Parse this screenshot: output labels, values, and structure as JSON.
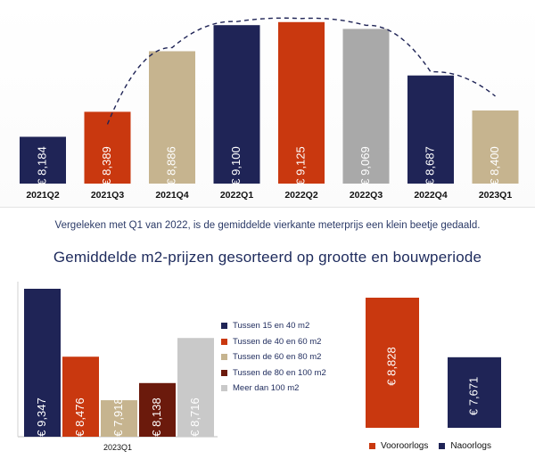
{
  "summary_text": "Vergeleken met Q1 van 2022, is de gemiddelde vierkante meterprijs een klein beetje gedaald.",
  "section_title": "Gemiddelde m2-prijzen gesorteerd op grootte en bouwperiode",
  "chart_data": [
    {
      "type": "bar",
      "title": "",
      "categories": [
        "2021Q2",
        "2021Q3",
        "2021Q4",
        "2022Q1",
        "2022Q2",
        "2022Q3",
        "2022Q4",
        "2023Q1"
      ],
      "values": [
        8184,
        8389,
        8886,
        9100,
        9125,
        9069,
        8687,
        8400
      ],
      "value_labels": [
        "€ 8,184",
        "€ 8,389",
        "€ 8,886",
        "€ 9,100",
        "€ 9,125",
        "€ 9,069",
        "€ 8,687",
        "€ 8,400"
      ],
      "colors": [
        "#1f2456",
        "#c9380f",
        "#c6b48f",
        "#1f2456",
        "#c9380f",
        "#a9a9a9",
        "#1f2456",
        "#c6b48f"
      ],
      "ylim": [
        7800,
        9160
      ],
      "trendline": {
        "style": "dashed",
        "color": "#1f2456"
      }
    },
    {
      "type": "bar",
      "categories": [
        "2023Q1"
      ],
      "series": [
        {
          "name": "Tussen 15 en 40 m2",
          "values": [
            9347
          ],
          "label": "€ 9,347",
          "color": "#1f2456"
        },
        {
          "name": "Tussen de 40 en 60 m2",
          "values": [
            8476
          ],
          "label": "€ 8,476",
          "color": "#c9380f"
        },
        {
          "name": "Tussen de 60 en 80 m2",
          "values": [
            7918
          ],
          "label": "€ 7,918",
          "color": "#c6b48f"
        },
        {
          "name": "Tussen de 80 en 100 m2",
          "values": [
            8138
          ],
          "label": "€ 8,138",
          "color": "#6b1a0c"
        },
        {
          "name": "Meer dan 100 m2",
          "values": [
            8716
          ],
          "label": "€ 8,716",
          "color": "#c9c9c9"
        }
      ],
      "ylim": [
        7450,
        9347
      ],
      "legend": "right"
    },
    {
      "type": "bar",
      "categories": [
        "Vooroorlogs",
        "Naoorlogs"
      ],
      "values": [
        8828,
        7671
      ],
      "value_labels": [
        "€ 8,828",
        "€ 7,671"
      ],
      "colors": [
        "#c9380f",
        "#1f2456"
      ],
      "ylim": [
        6300,
        8828
      ],
      "legend": "bottom"
    }
  ]
}
